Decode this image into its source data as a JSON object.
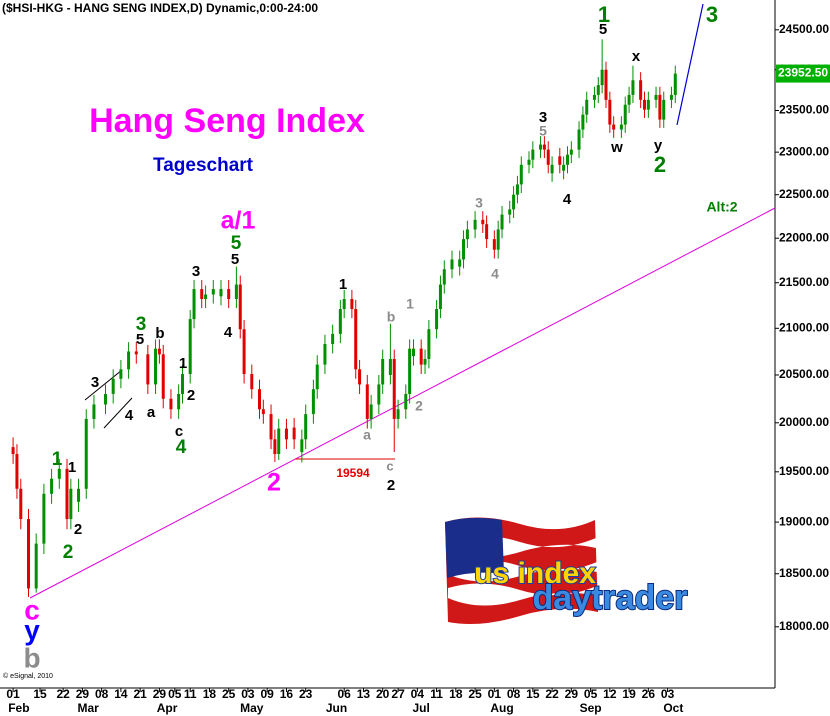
{
  "chart_data": {
    "type": "candlestick",
    "header": "($HSI-HKG - HANG SENG INDEX,D) Dynamic,0:00-24:00",
    "title": "Hang Seng Index",
    "subtitle": "Tageschart",
    "copyright": "© eSignal, 2010",
    "log_scale": true,
    "up_color": "#009000",
    "down_color": "#e00000",
    "xlim": [
      -3.4,
      197.9
    ],
    "ylim": [
      17440,
      24880
    ],
    "x": [
      0,
      1,
      2,
      4,
      6,
      8,
      10,
      12,
      14,
      15,
      17,
      19,
      21,
      24,
      26,
      28,
      30,
      32,
      35,
      37,
      38,
      39,
      41,
      43,
      44,
      46,
      47,
      49,
      50,
      52,
      54,
      56,
      58,
      59,
      60,
      62,
      64,
      65,
      67,
      68,
      69,
      71,
      73,
      75,
      76,
      78,
      79,
      81,
      83,
      85,
      86,
      88,
      89,
      90,
      92,
      93,
      95,
      96,
      98,
      99,
      100,
      102,
      103,
      104,
      106,
      107,
      108,
      110,
      111,
      112,
      114,
      116,
      117,
      118,
      120,
      122,
      123,
      125,
      126,
      127,
      129,
      130,
      131,
      132,
      134,
      135,
      137,
      138,
      139,
      140,
      142,
      143,
      144,
      145,
      147,
      148,
      149,
      151,
      152,
      153,
      154,
      155,
      156,
      158,
      159,
      160,
      161,
      163,
      164,
      165,
      167,
      168,
      169,
      171,
      172
    ],
    "ohlc": [
      [
        19750,
        19850,
        19580,
        19680
      ],
      [
        19680,
        19780,
        19230,
        19330
      ],
      [
        19330,
        19430,
        18930,
        19030
      ],
      [
        19030,
        19130,
        18280,
        18360
      ],
      [
        18360,
        18890,
        18320,
        18790
      ],
      [
        18790,
        19380,
        18690,
        19280
      ],
      [
        19280,
        19530,
        19180,
        19430
      ],
      [
        19430,
        19630,
        19330,
        19530
      ],
      [
        19530,
        19630,
        18930,
        19030
      ],
      [
        19030,
        19430,
        18930,
        19330
      ],
      [
        19200,
        19430,
        19100,
        19330
      ],
      [
        19330,
        20140,
        19230,
        20040
      ],
      [
        20040,
        20290,
        19940,
        20190
      ],
      [
        20190,
        20400,
        20090,
        20300
      ],
      [
        20300,
        20560,
        20200,
        20460
      ],
      [
        20460,
        20660,
        20360,
        20560
      ],
      [
        20560,
        20850,
        20460,
        20750
      ],
      [
        20750,
        20850,
        20620,
        20720
      ],
      [
        20720,
        20820,
        20300,
        20400
      ],
      [
        20400,
        20880,
        20300,
        20780
      ],
      [
        20780,
        20880,
        20620,
        20720
      ],
      [
        20720,
        20820,
        20150,
        20250
      ],
      [
        20250,
        20350,
        20040,
        20140
      ],
      [
        20140,
        20400,
        20040,
        20300
      ],
      [
        20300,
        20610,
        20200,
        20510
      ],
      [
        20510,
        21200,
        20410,
        21100
      ],
      [
        21100,
        21530,
        21000,
        21430
      ],
      [
        21430,
        21530,
        21220,
        21320
      ],
      [
        21320,
        21470,
        21220,
        21370
      ],
      [
        21370,
        21530,
        21270,
        21430
      ],
      [
        21350,
        21530,
        21250,
        21430
      ],
      [
        21430,
        21530,
        21220,
        21320
      ],
      [
        21320,
        21680,
        21220,
        21480
      ],
      [
        21480,
        21580,
        20890,
        20990
      ],
      [
        20990,
        21090,
        20410,
        20510
      ],
      [
        20510,
        20610,
        20250,
        20350
      ],
      [
        20350,
        20450,
        20040,
        20140
      ],
      [
        20140,
        20240,
        19990,
        20090
      ],
      [
        20090,
        20190,
        19730,
        19830
      ],
      [
        19830,
        19930,
        19600,
        19680
      ],
      [
        19680,
        20040,
        19620,
        19940
      ],
      [
        19940,
        20040,
        19730,
        19830
      ],
      [
        19950,
        20050,
        19730,
        19830
      ],
      [
        19700,
        19930,
        19594,
        19830
      ],
      [
        19830,
        20190,
        19730,
        20090
      ],
      [
        20090,
        20450,
        19990,
        20350
      ],
      [
        20350,
        20710,
        20250,
        20610
      ],
      [
        20610,
        20930,
        20510,
        20830
      ],
      [
        20830,
        21040,
        20730,
        20940
      ],
      [
        20940,
        21310,
        20840,
        21210
      ],
      [
        21210,
        21420,
        21110,
        21320
      ],
      [
        21320,
        21420,
        21110,
        21210
      ],
      [
        21210,
        21310,
        20460,
        20560
      ],
      [
        20560,
        20660,
        20300,
        20400
      ],
      [
        20400,
        20500,
        19940,
        20040
      ],
      [
        20040,
        20290,
        19940,
        20190
      ],
      [
        20190,
        20500,
        20090,
        20400
      ],
      [
        20400,
        20770,
        20300,
        20670
      ],
      [
        20500,
        21050,
        20400,
        20670
      ],
      [
        20670,
        20770,
        19700,
        20040
      ],
      [
        20040,
        20240,
        19940,
        20140
      ],
      [
        20140,
        20400,
        20040,
        20300
      ],
      [
        20300,
        20880,
        20200,
        20780
      ],
      [
        20700,
        20880,
        20600,
        20780
      ],
      [
        20780,
        20880,
        20510,
        20610
      ],
      [
        20610,
        20770,
        20510,
        20670
      ],
      [
        20670,
        21090,
        20570,
        20990
      ],
      [
        20990,
        21310,
        20890,
        21210
      ],
      [
        21210,
        21580,
        21110,
        21480
      ],
      [
        21480,
        21750,
        21380,
        21650
      ],
      [
        21650,
        21860,
        21550,
        21760
      ],
      [
        21680,
        21860,
        21580,
        21760
      ],
      [
        21760,
        22090,
        21660,
        21990
      ],
      [
        21990,
        22200,
        21890,
        22100
      ],
      [
        22100,
        22310,
        22000,
        22210
      ],
      [
        22210,
        22310,
        22060,
        22160
      ],
      [
        22160,
        22260,
        21890,
        21990
      ],
      [
        21990,
        22090,
        21770,
        21870
      ],
      [
        21870,
        22200,
        21770,
        22100
      ],
      [
        22100,
        22370,
        22000,
        22270
      ],
      [
        22270,
        22430,
        22170,
        22330
      ],
      [
        22330,
        22600,
        22230,
        22500
      ],
      [
        22500,
        22720,
        22400,
        22620
      ],
      [
        22620,
        22950,
        22520,
        22850
      ],
      [
        22850,
        23010,
        22750,
        22910
      ],
      [
        22910,
        23130,
        22810,
        23030
      ],
      [
        23030,
        23190,
        22930,
        23090
      ],
      [
        23090,
        23190,
        22930,
        23030
      ],
      [
        23030,
        23130,
        22750,
        22850
      ],
      [
        22750,
        22950,
        22650,
        22850
      ],
      [
        22950,
        23050,
        22750,
        22850
      ],
      [
        22780,
        22950,
        22680,
        22850
      ],
      [
        22850,
        23070,
        22750,
        22970
      ],
      [
        22970,
        23130,
        22870,
        23030
      ],
      [
        23030,
        23370,
        22930,
        23270
      ],
      [
        23270,
        23550,
        23170,
        23450
      ],
      [
        23450,
        23730,
        23350,
        23630
      ],
      [
        23630,
        23790,
        23530,
        23690
      ],
      [
        23690,
        23910,
        23590,
        23810
      ],
      [
        23810,
        24380,
        23710,
        24000
      ],
      [
        24000,
        24100,
        23530,
        23630
      ],
      [
        23630,
        23730,
        23230,
        23330
      ],
      [
        23330,
        23430,
        23170,
        23270
      ],
      [
        23270,
        23430,
        23170,
        23330
      ],
      [
        23330,
        23670,
        23230,
        23570
      ],
      [
        23570,
        23790,
        23470,
        23690
      ],
      [
        23690,
        24050,
        23590,
        23870
      ],
      [
        23870,
        23970,
        23530,
        23630
      ],
      [
        23630,
        23730,
        23410,
        23510
      ],
      [
        23510,
        23730,
        23410,
        23630
      ],
      [
        23630,
        23790,
        23530,
        23690
      ],
      [
        23690,
        23790,
        23290,
        23390
      ],
      [
        23390,
        23730,
        23290,
        23630
      ],
      [
        23630,
        23790,
        23530,
        23690
      ],
      [
        23690,
        24050,
        23590,
        23952.5
      ]
    ],
    "last_label": "23952.50",
    "yticks": [
      {
        "value": 18000,
        "label": "18000.00"
      },
      {
        "value": 18500,
        "label": "18500.00"
      },
      {
        "value": 19000,
        "label": "19000.00"
      },
      {
        "value": 19500,
        "label": "19500.00"
      },
      {
        "value": 20000,
        "label": "20000.00"
      },
      {
        "value": 20500,
        "label": "20500.00"
      },
      {
        "value": 21000,
        "label": "21000.00"
      },
      {
        "value": 21500,
        "label": "21500.00"
      },
      {
        "value": 22000,
        "label": "22000.00"
      },
      {
        "value": 22500,
        "label": "22500.00"
      },
      {
        "value": 23000,
        "label": "23000.00"
      },
      {
        "value": 23500,
        "label": "23500.00"
      },
      {
        "value": 24000,
        "label": "24000.00"
      },
      {
        "value": 24500,
        "label": "24500.00"
      }
    ],
    "xticks": [
      {
        "value": 0,
        "label": "01"
      },
      {
        "value": 7,
        "label": "15"
      },
      {
        "value": 13,
        "label": "22"
      },
      {
        "value": 18,
        "label": "29"
      },
      {
        "value": 23,
        "label": "08"
      },
      {
        "value": 28,
        "label": "14"
      },
      {
        "value": 33,
        "label": "21"
      },
      {
        "value": 38,
        "label": "29"
      },
      {
        "value": 42,
        "label": "05"
      },
      {
        "value": 46,
        "label": "11"
      },
      {
        "value": 51,
        "label": "18"
      },
      {
        "value": 56,
        "label": "25"
      },
      {
        "value": 61,
        "label": "03"
      },
      {
        "value": 66,
        "label": "09"
      },
      {
        "value": 71,
        "label": "16"
      },
      {
        "value": 76,
        "label": "23"
      },
      {
        "value": 86,
        "label": "06"
      },
      {
        "value": 91,
        "label": "13"
      },
      {
        "value": 96,
        "label": "20"
      },
      {
        "value": 100,
        "label": "27"
      },
      {
        "value": 105,
        "label": "04"
      },
      {
        "value": 110,
        "label": "11"
      },
      {
        "value": 115,
        "label": "18"
      },
      {
        "value": 120,
        "label": "25"
      },
      {
        "value": 125,
        "label": "01"
      },
      {
        "value": 130,
        "label": "08"
      },
      {
        "value": 135,
        "label": "15"
      },
      {
        "value": 140,
        "label": "22"
      },
      {
        "value": 145,
        "label": "29"
      },
      {
        "value": 150,
        "label": "05"
      },
      {
        "value": 155,
        "label": "12"
      },
      {
        "value": 160,
        "label": "19"
      },
      {
        "value": 165,
        "label": "26"
      },
      {
        "value": 170,
        "label": "03"
      }
    ],
    "month_ticks": [
      {
        "value": 1.5,
        "label": "Feb"
      },
      {
        "value": 19.5,
        "label": "Mar"
      },
      {
        "value": 40,
        "label": "Apr"
      },
      {
        "value": 62,
        "label": "May"
      },
      {
        "value": 84,
        "label": "Jun"
      },
      {
        "value": 106,
        "label": "Jul"
      },
      {
        "value": 127,
        "label": "Aug"
      },
      {
        "value": 150,
        "label": "Sep"
      },
      {
        "value": 171.5,
        "label": "Oct"
      }
    ],
    "annotations": [
      "c",
      "y",
      "b",
      "1",
      "1",
      "2",
      "2",
      "3",
      "4",
      "3",
      "5",
      "b",
      "a",
      "1",
      "2",
      "c",
      "4",
      "3",
      "a/1",
      "5",
      "5",
      "4",
      "2",
      "1",
      "19594",
      "b",
      "1",
      "a",
      "2",
      "c",
      "2",
      "3",
      "4",
      "3",
      "5",
      "4",
      "1",
      "5",
      "x",
      "w",
      "y",
      "2",
      "3",
      "Alt:2"
    ],
    "logo": {
      "line1": "us index",
      "line2": "daytrader"
    }
  }
}
